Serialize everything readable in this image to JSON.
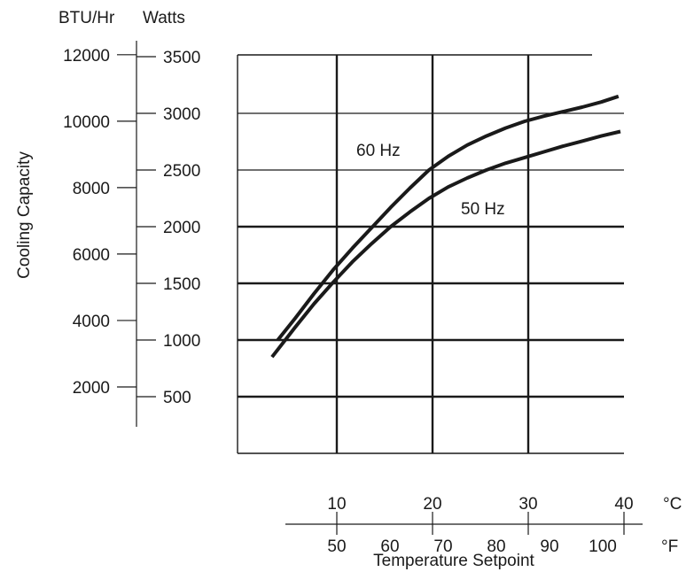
{
  "chart_data": {
    "type": "line",
    "ylabel": "Cooling Capacity",
    "xlabel": "Temperature Setpoint",
    "y_units": [
      "BTU/Hr",
      "Watts"
    ],
    "x_units": [
      "°C",
      "°F"
    ],
    "y_btu_ticks": [
      "12000",
      "10000",
      "8000",
      "6000",
      "4000",
      "2000"
    ],
    "y_watts_ticks": [
      "3500",
      "3000",
      "2500",
      "2000",
      "1500",
      "1000",
      "500"
    ],
    "x_c_ticks": [
      "10",
      "20",
      "30",
      "40"
    ],
    "x_f_ticks": [
      "50",
      "60",
      "70",
      "80",
      "90",
      "100"
    ],
    "xlim_c": [
      0,
      40
    ],
    "ylim_watts": [
      0,
      3500
    ],
    "grid": true,
    "series": [
      {
        "name": "60 Hz",
        "x": [
          4.2,
          6,
          8,
          10,
          12,
          14,
          16,
          18,
          20,
          22,
          24,
          26,
          28,
          30,
          32,
          34,
          36,
          38,
          39.8
        ],
        "y": [
          1000,
          1190,
          1410,
          1620,
          1810,
          1990,
          2170,
          2340,
          2500,
          2620,
          2720,
          2800,
          2870,
          2930,
          2975,
          3015,
          3055,
          3100,
          3150
        ]
      },
      {
        "name": "50 Hz",
        "x": [
          3.6,
          6,
          8,
          10,
          12,
          14,
          16,
          18,
          20,
          22,
          24,
          26,
          28,
          30,
          32,
          34,
          36,
          38,
          40
        ],
        "y": [
          850,
          1110,
          1320,
          1510,
          1690,
          1850,
          2000,
          2130,
          2250,
          2350,
          2430,
          2500,
          2560,
          2610,
          2660,
          2710,
          2755,
          2800,
          2840
        ]
      }
    ]
  }
}
